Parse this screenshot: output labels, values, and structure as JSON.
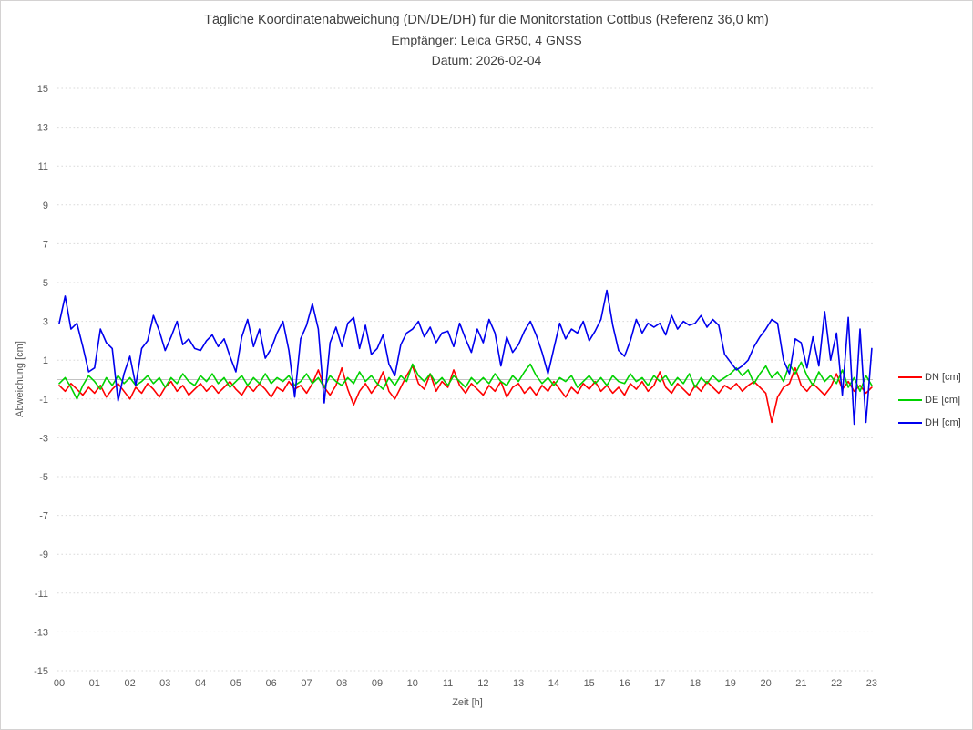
{
  "title": {
    "line1": "Tägliche Koordinatenabweichung (DN/DE/DH) für die Monitorstation Cottbus (Referenz 36,0 km)",
    "line2": "Empfänger: Leica GR50, 4 GNSS",
    "line3": "Datum: 2026-02-04"
  },
  "colors": {
    "dn": "#ff0000",
    "de": "#00d200",
    "dh": "#0000ee",
    "grid": "#d9d9d9",
    "zero_line": "#c3c3c3",
    "tick_text": "#595959",
    "title_text": "#3f3f3f",
    "frame_border": "#d4d2d2"
  },
  "chart_data": {
    "type": "line",
    "title": "Tägliche Koordinatenabweichung (DN/DE/DH) für die Monitorstation Cottbus (Referenz 36,0 km)",
    "subtitle_receiver": "Empfänger: Leica GR50, 4 GNSS",
    "subtitle_date": "Datum: 2026-02-04",
    "xlabel": "Zeit [h]",
    "ylabel": "Abweichung [cm]",
    "xlim": [
      0,
      23.2
    ],
    "ylim": [
      -15,
      15
    ],
    "grid": "horizontal dashed gridlines at odd values, solid line at 0, legend right",
    "x_ticks": [
      "00",
      "01",
      "02",
      "03",
      "04",
      "05",
      "06",
      "07",
      "08",
      "09",
      "10",
      "11",
      "12",
      "13",
      "14",
      "15",
      "16",
      "17",
      "18",
      "19",
      "20",
      "21",
      "22",
      "23"
    ],
    "y_ticks": [
      15,
      13,
      11,
      9,
      7,
      5,
      3,
      1,
      -1,
      -3,
      -5,
      -7,
      -9,
      -11,
      -13,
      -15
    ],
    "x_start_hour": 0,
    "x_step_hours": 0.166667,
    "grid_color": "#d9d9d9",
    "zero_line_color": "#c3c3c3",
    "series": [
      {
        "id": "dn",
        "name": "DN [cm]",
        "color": "#ff0000",
        "values": [
          -0.3,
          -0.6,
          -0.2,
          -0.5,
          -0.8,
          -0.4,
          -0.7,
          -0.3,
          -0.9,
          -0.5,
          -0.2,
          -0.6,
          -1.0,
          -0.4,
          -0.7,
          -0.2,
          -0.5,
          -0.9,
          -0.4,
          -0.1,
          -0.6,
          -0.3,
          -0.8,
          -0.5,
          -0.2,
          -0.6,
          -0.3,
          -0.7,
          -0.4,
          -0.1,
          -0.5,
          -0.8,
          -0.3,
          -0.6,
          -0.2,
          -0.5,
          -0.9,
          -0.4,
          -0.6,
          -0.1,
          -0.5,
          -0.3,
          -0.7,
          -0.2,
          0.5,
          -0.4,
          -0.8,
          -0.3,
          0.6,
          -0.5,
          -1.3,
          -0.6,
          -0.2,
          -0.7,
          -0.3,
          0.4,
          -0.6,
          -1.0,
          -0.4,
          0.2,
          0.7,
          -0.2,
          -0.5,
          0.3,
          -0.6,
          -0.1,
          -0.4,
          0.5,
          -0.3,
          -0.7,
          -0.2,
          -0.5,
          -0.8,
          -0.3,
          -0.6,
          -0.1,
          -0.9,
          -0.4,
          -0.2,
          -0.7,
          -0.4,
          -0.8,
          -0.3,
          -0.6,
          -0.1,
          -0.5,
          -0.9,
          -0.4,
          -0.7,
          -0.2,
          -0.5,
          -0.1,
          -0.6,
          -0.3,
          -0.7,
          -0.4,
          -0.8,
          -0.2,
          -0.5,
          -0.1,
          -0.6,
          -0.3,
          0.4,
          -0.4,
          -0.7,
          -0.2,
          -0.5,
          -0.8,
          -0.3,
          -0.6,
          -0.1,
          -0.4,
          -0.7,
          -0.3,
          -0.5,
          -0.2,
          -0.6,
          -0.3,
          -0.1,
          -0.4,
          -0.7,
          -2.2,
          -0.9,
          -0.4,
          -0.2,
          0.6,
          -0.3,
          -0.6,
          -0.2,
          -0.5,
          -0.8,
          -0.4,
          0.3,
          -0.5,
          -0.1,
          -0.6,
          -0.3,
          -0.7,
          -0.4
        ]
      },
      {
        "id": "de",
        "name": "DE [cm]",
        "color": "#00d200",
        "values": [
          -0.2,
          0.1,
          -0.4,
          -1.0,
          -0.3,
          0.2,
          -0.1,
          -0.5,
          0.1,
          -0.3,
          0.2,
          -0.2,
          0.1,
          -0.3,
          -0.1,
          0.2,
          -0.2,
          0.1,
          -0.4,
          0.1,
          -0.2,
          0.3,
          -0.1,
          -0.3,
          0.2,
          -0.1,
          0.3,
          -0.2,
          0.1,
          -0.4,
          -0.1,
          0.2,
          -0.3,
          0.1,
          -0.2,
          0.3,
          -0.2,
          0.1,
          -0.1,
          0.2,
          -0.3,
          -0.1,
          0.3,
          -0.2,
          0.1,
          -0.4,
          0.2,
          -0.1,
          -0.3,
          0.1,
          -0.2,
          0.4,
          -0.1,
          0.2,
          -0.2,
          -0.5,
          0.1,
          -0.3,
          0.2,
          -0.1,
          0.8,
          0.2,
          -0.1,
          0.3,
          -0.2,
          0.1,
          -0.3,
          0.2,
          -0.1,
          -0.4,
          0.1,
          -0.2,
          0.1,
          -0.2,
          0.3,
          -0.1,
          -0.3,
          0.2,
          -0.1,
          0.4,
          0.8,
          0.2,
          -0.2,
          0.1,
          -0.3,
          0.1,
          -0.1,
          0.2,
          -0.4,
          -0.1,
          0.2,
          -0.2,
          0.1,
          -0.3,
          0.2,
          -0.1,
          -0.2,
          0.3,
          -0.1,
          0.1,
          -0.3,
          0.2,
          -0.1,
          0.2,
          -0.3,
          0.1,
          -0.2,
          0.3,
          -0.4,
          0.1,
          -0.2,
          0.2,
          -0.1,
          0.1,
          0.3,
          0.6,
          0.2,
          0.5,
          -0.2,
          0.3,
          0.7,
          0.1,
          0.4,
          -0.1,
          0.8,
          0.3,
          0.9,
          0.2,
          -0.3,
          0.4,
          -0.1,
          0.2,
          -0.2,
          0.5,
          -0.4,
          0.1,
          -0.6,
          0.2,
          -0.3
        ]
      },
      {
        "id": "dh",
        "name": "DH [cm]",
        "color": "#0000ee",
        "values": [
          2.9,
          4.3,
          2.6,
          2.9,
          1.7,
          0.4,
          0.6,
          2.6,
          1.9,
          1.6,
          -1.1,
          0.3,
          1.2,
          -0.3,
          1.6,
          2.0,
          3.3,
          2.5,
          1.5,
          2.2,
          3.0,
          1.8,
          2.1,
          1.6,
          1.5,
          2.0,
          2.3,
          1.7,
          2.1,
          1.2,
          0.4,
          2.2,
          3.1,
          1.7,
          2.6,
          1.1,
          1.6,
          2.4,
          3.0,
          1.5,
          -0.9,
          2.1,
          2.8,
          3.9,
          2.6,
          -1.2,
          1.9,
          2.7,
          1.7,
          2.9,
          3.2,
          1.6,
          2.8,
          1.3,
          1.6,
          2.3,
          0.8,
          0.2,
          1.8,
          2.4,
          2.6,
          3.0,
          2.2,
          2.7,
          1.9,
          2.4,
          2.5,
          1.7,
          2.9,
          2.1,
          1.4,
          2.6,
          1.9,
          3.1,
          2.4,
          0.7,
          2.2,
          1.4,
          1.8,
          2.5,
          3.0,
          2.3,
          1.4,
          0.3,
          1.6,
          2.9,
          2.1,
          2.6,
          2.4,
          3.0,
          2.0,
          2.5,
          3.1,
          4.6,
          2.8,
          1.5,
          1.2,
          2.0,
          3.1,
          2.4,
          2.9,
          2.7,
          2.9,
          2.3,
          3.3,
          2.6,
          3.0,
          2.8,
          2.9,
          3.3,
          2.7,
          3.1,
          2.8,
          1.3,
          0.9,
          0.5,
          0.7,
          1.0,
          1.7,
          2.2,
          2.6,
          3.1,
          2.9,
          1.0,
          0.3,
          2.1,
          1.9,
          0.6,
          2.2,
          0.7,
          3.5,
          1.0,
          2.4,
          -0.8,
          3.2,
          -2.3,
          2.6,
          -2.2,
          1.6
        ]
      }
    ],
    "legend_position": "right"
  }
}
